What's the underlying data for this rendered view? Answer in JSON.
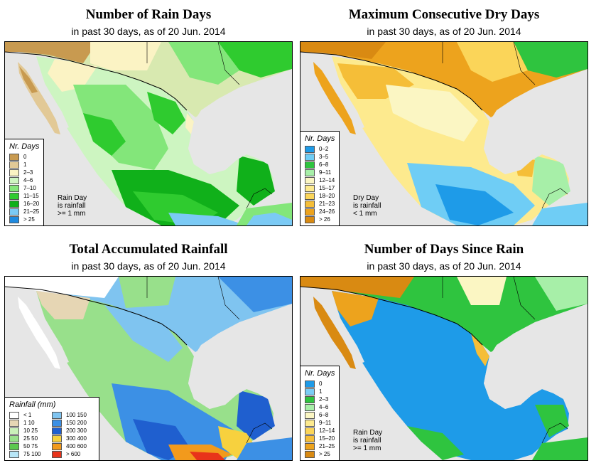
{
  "panels": [
    {
      "title": "Number of Rain Days",
      "subtitle": "in past 30 days, as of  20 Jun. 2014",
      "legend_title": "Nr. Days",
      "legend": [
        {
          "label": "0",
          "color": "#c89a50"
        },
        {
          "label": "1",
          "color": "#e2c996"
        },
        {
          "label": "2–3",
          "color": "#fbf3c4"
        },
        {
          "label": "4–6",
          "color": "#cdf5c1"
        },
        {
          "label": "7–10",
          "color": "#83e67a"
        },
        {
          "label": "11–15",
          "color": "#2fcb2f"
        },
        {
          "label": "16–20",
          "color": "#10b01a"
        },
        {
          "label": "21–25",
          "color": "#7bcaf5"
        },
        {
          "label": "> 25",
          "color": "#1e8ae0"
        }
      ],
      "note": [
        "Rain Day",
        "is rainfall",
        ">= 1 mm"
      ]
    },
    {
      "title": "Maximum Consecutive Dry Days",
      "subtitle": "in past 30 days, as of  20 Jun. 2014",
      "legend_title": "Nr. Days",
      "legend": [
        {
          "label": "0–2",
          "color": "#1e9be8"
        },
        {
          "label": "3–5",
          "color": "#6fcdf5"
        },
        {
          "label": "6–8",
          "color": "#2fc43f"
        },
        {
          "label": "9–11",
          "color": "#a7efa8"
        },
        {
          "label": "12–14",
          "color": "#fbf6c3"
        },
        {
          "label": "15–17",
          "color": "#fdea8e"
        },
        {
          "label": "18–20",
          "color": "#fbd559"
        },
        {
          "label": "21–23",
          "color": "#f5be38"
        },
        {
          "label": "24–26",
          "color": "#eda31d"
        },
        {
          "label": "> 26",
          "color": "#d98a12"
        }
      ],
      "note": [
        "Dry Day",
        "is rainfall",
        "< 1 mm"
      ]
    },
    {
      "title": "Total Accumulated Rainfall",
      "subtitle": "in past 30 days, as of  20 Jun. 2014",
      "legend_title": "Rainfall (mm)",
      "legend_cols": [
        [
          {
            "label": "< 1",
            "color": "#ffffff"
          },
          {
            "label": "1   10",
            "color": "#e6d6b4"
          },
          {
            "label": "10   25",
            "color": "#c9f0b9"
          },
          {
            "label": "25   50",
            "color": "#98e08b"
          },
          {
            "label": "50   75",
            "color": "#5cc84f"
          },
          {
            "label": "75   100",
            "color": "#b8e6f7"
          }
        ],
        [
          {
            "label": "100   150",
            "color": "#7fc4f0"
          },
          {
            "label": "150   200",
            "color": "#3c90e5"
          },
          {
            "label": "200   300",
            "color": "#1f5fcf"
          },
          {
            "label": "300   400",
            "color": "#f7d13e"
          },
          {
            "label": "400   600",
            "color": "#f29a1c"
          },
          {
            "label": "> 600",
            "color": "#e8331a"
          }
        ]
      ]
    },
    {
      "title": "Number of Days Since Rain",
      "subtitle": "in past 30 days, as of  20 Jun. 2014",
      "legend_title": "Nr. Days",
      "legend": [
        {
          "label": "0",
          "color": "#1e9be8"
        },
        {
          "label": "1",
          "color": "#7acdf5"
        },
        {
          "label": "2–3",
          "color": "#2fc43f"
        },
        {
          "label": "4–6",
          "color": "#a7efa8"
        },
        {
          "label": "6–8",
          "color": "#fbf6c3"
        },
        {
          "label": "9–11",
          "color": "#fdea8e"
        },
        {
          "label": "12–14",
          "color": "#fbd559"
        },
        {
          "label": "15–20",
          "color": "#f5be38"
        },
        {
          "label": "21–25",
          "color": "#eda31d"
        },
        {
          "label": "> 25",
          "color": "#d98a12"
        }
      ],
      "note": [
        "Rain Day",
        "is rainfall",
        ">= 1 mm"
      ]
    }
  ]
}
